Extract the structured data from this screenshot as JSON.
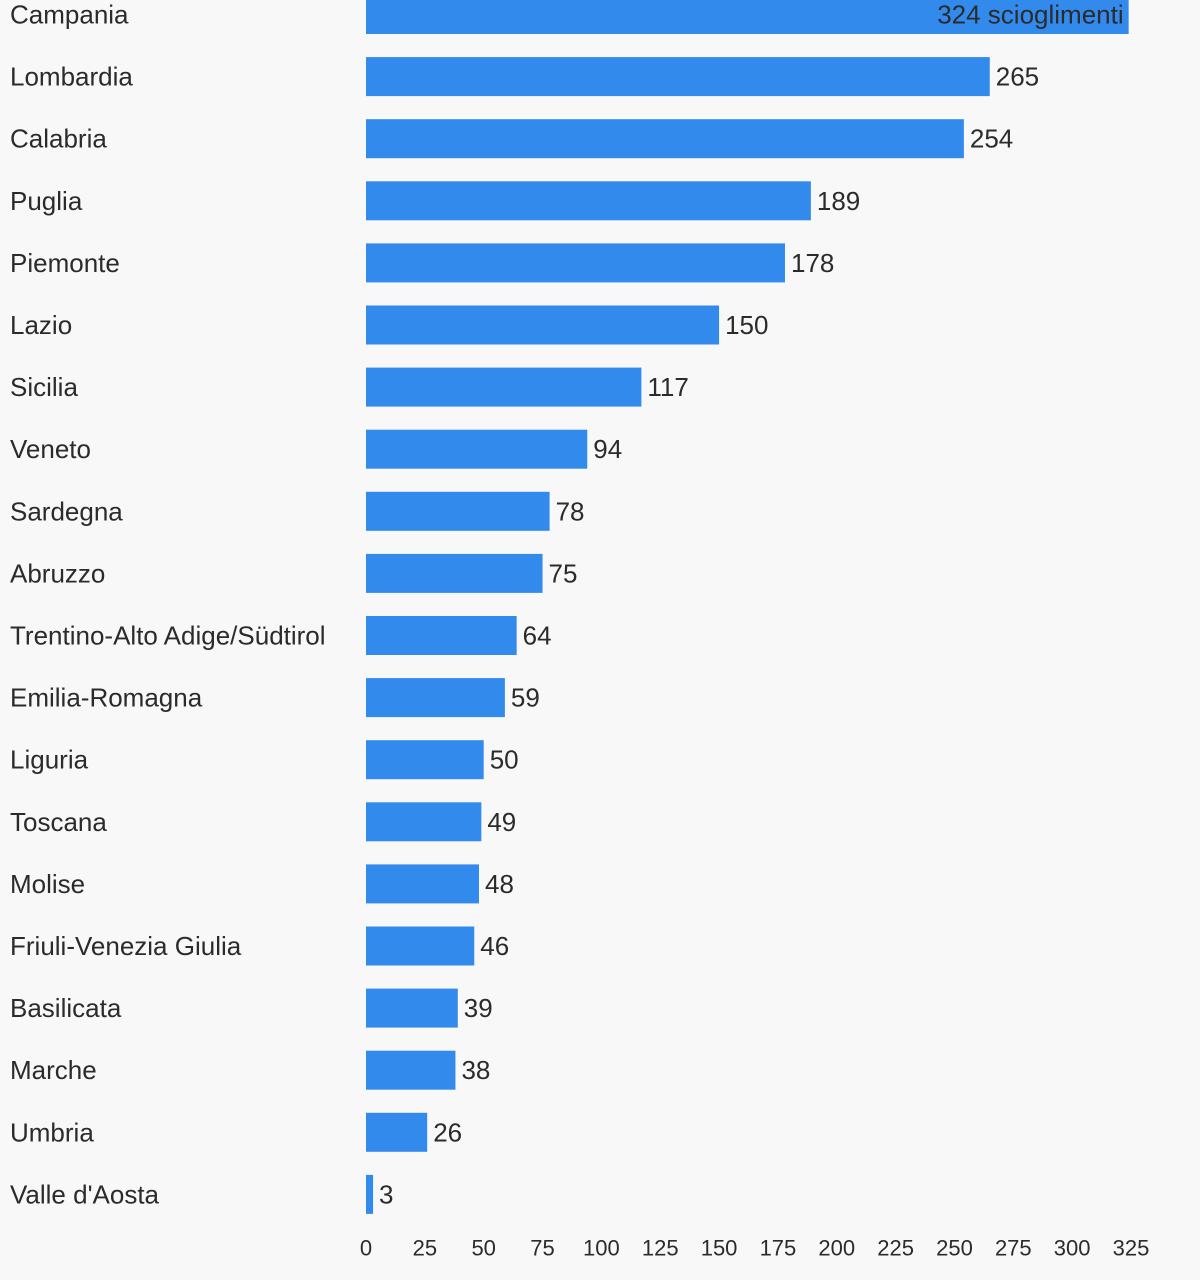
{
  "chart_data": {
    "type": "bar",
    "orientation": "horizontal",
    "categories": [
      "Campania",
      "Lombardia",
      "Calabria",
      "Puglia",
      "Piemonte",
      "Lazio",
      "Sicilia",
      "Veneto",
      "Sardegna",
      "Abruzzo",
      "Trentino-Alto Adige/Südtirol",
      "Emilia-Romagna",
      "Liguria",
      "Toscana",
      "Molise",
      "Friuli-Venezia Giulia",
      "Basilicata",
      "Marche",
      "Umbria",
      "Valle d'Aosta"
    ],
    "values": [
      324,
      265,
      254,
      189,
      178,
      150,
      117,
      94,
      78,
      75,
      64,
      59,
      50,
      49,
      48,
      46,
      39,
      38,
      26,
      3
    ],
    "value_labels": [
      "324 scioglimenti",
      "265",
      "254",
      "189",
      "178",
      "150",
      "117",
      "94",
      "78",
      "75",
      "64",
      "59",
      "50",
      "49",
      "48",
      "46",
      "39",
      "38",
      "26",
      "3"
    ],
    "xlim": [
      0,
      325
    ],
    "x_ticks": [
      "0",
      "25",
      "50",
      "75",
      "100",
      "125",
      "150",
      "175",
      "200",
      "225",
      "250",
      "275",
      "300",
      "325"
    ],
    "grid": false,
    "colors": {
      "bar": "#338aed",
      "text": "#2b2b2b",
      "background": "#f8f8f8"
    }
  }
}
